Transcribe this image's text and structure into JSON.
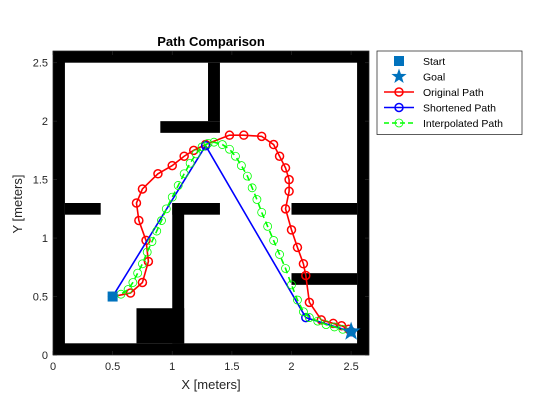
{
  "chart_data": {
    "type": "line",
    "title": "Path Comparison",
    "xlabel": "X [meters]",
    "ylabel": "Y [meters]",
    "xlim": [
      0,
      2.65
    ],
    "ylim": [
      0,
      2.6
    ],
    "xticks": [
      "0",
      "0.5",
      "1",
      "1.5",
      "2",
      "2.5"
    ],
    "xtick_values": [
      0,
      0.5,
      1,
      1.5,
      2,
      2.5
    ],
    "yticks": [
      "0",
      "0.5",
      "1",
      "1.5",
      "2",
      "2.5"
    ],
    "ytick_values": [
      0,
      0.5,
      1,
      1.5,
      2,
      2.5
    ],
    "grid": false,
    "legend_position": "outside-top-right",
    "legend": [
      {
        "label": "Start",
        "marker": "square",
        "color": "#0072BD"
      },
      {
        "label": "Goal",
        "marker": "star",
        "color": "#0072BD"
      },
      {
        "label": "Original Path",
        "marker": "circle",
        "color": "#FF0000"
      },
      {
        "label": "Shortened Path",
        "marker": "circle",
        "color": "#0000FF"
      },
      {
        "label": "Interpolated Path",
        "marker": "circle",
        "color": "#00FF00",
        "dashed": true
      }
    ],
    "map": {
      "occupied_color": "#000000",
      "free_color": "#ffffff",
      "obstacles": [
        {
          "x0": 0,
          "x1": 2.65,
          "y0": 0,
          "y1": 0.1
        },
        {
          "x0": 0,
          "x1": 2.65,
          "y0": 2.5,
          "y1": 2.6
        },
        {
          "x0": 0,
          "x1": 0.1,
          "y0": 0,
          "y1": 2.6
        },
        {
          "x0": 2.55,
          "x1": 2.65,
          "y0": 0,
          "y1": 2.6
        },
        {
          "x0": 1.3,
          "x1": 1.4,
          "y0": 2.0,
          "y1": 2.5
        },
        {
          "x0": 0.9,
          "x1": 1.4,
          "y0": 1.9,
          "y1": 2.0
        },
        {
          "x0": 0.1,
          "x1": 0.4,
          "y0": 1.2,
          "y1": 1.3
        },
        {
          "x0": 1.0,
          "x1": 1.4,
          "y0": 1.2,
          "y1": 1.3
        },
        {
          "x0": 1.0,
          "x1": 1.1,
          "y0": 0.1,
          "y1": 1.3
        },
        {
          "x0": 2.0,
          "x1": 2.55,
          "y0": 1.2,
          "y1": 1.3
        },
        {
          "x0": 2.0,
          "x1": 2.55,
          "y0": 0.6,
          "y1": 0.7
        },
        {
          "x0": 0.7,
          "x1": 1.1,
          "y0": 0.1,
          "y1": 0.4
        }
      ]
    },
    "series": [
      {
        "name": "Start",
        "type": "scatter",
        "marker": "square",
        "color": "#0072BD",
        "x": [
          0.5
        ],
        "y": [
          0.5
        ]
      },
      {
        "name": "Goal",
        "type": "scatter",
        "marker": "star",
        "color": "#0072BD",
        "x": [
          2.5
        ],
        "y": [
          0.2
        ]
      },
      {
        "name": "Original Path",
        "type": "line",
        "marker": "circle",
        "color": "#FF0000",
        "x": [
          0.5,
          0.65,
          0.75,
          0.8,
          0.78,
          0.72,
          0.7,
          0.75,
          0.88,
          1.0,
          1.1,
          1.18,
          1.28,
          1.48,
          1.6,
          1.75,
          1.85,
          1.9,
          1.95,
          1.98,
          1.98,
          1.95,
          2.0,
          2.05,
          2.1,
          2.12,
          2.15,
          2.25,
          2.35,
          2.42,
          2.48,
          2.5
        ],
        "y": [
          0.5,
          0.53,
          0.62,
          0.8,
          0.98,
          1.15,
          1.3,
          1.42,
          1.55,
          1.62,
          1.7,
          1.75,
          1.8,
          1.88,
          1.88,
          1.87,
          1.8,
          1.7,
          1.6,
          1.5,
          1.4,
          1.25,
          1.07,
          0.92,
          0.78,
          0.68,
          0.45,
          0.3,
          0.27,
          0.25,
          0.22,
          0.2
        ]
      },
      {
        "name": "Shortened Path",
        "type": "line",
        "marker": "circle",
        "color": "#0000FF",
        "x": [
          0.5,
          1.28,
          2.12,
          2.5
        ],
        "y": [
          0.5,
          1.79,
          0.32,
          0.2
        ]
      },
      {
        "name": "Interpolated Path",
        "type": "line",
        "marker": "circle",
        "dashed": true,
        "color": "#00FF00",
        "x": [
          0.5,
          0.57,
          0.63,
          0.67,
          0.71,
          0.75,
          0.79,
          0.83,
          0.87,
          0.91,
          0.95,
          1.0,
          1.05,
          1.1,
          1.15,
          1.2,
          1.25,
          1.3,
          1.35,
          1.42,
          1.48,
          1.53,
          1.58,
          1.63,
          1.67,
          1.71,
          1.75,
          1.8,
          1.85,
          1.9,
          1.95,
          2.0,
          2.05,
          2.1,
          2.15,
          2.22,
          2.29,
          2.36,
          2.43,
          2.5
        ],
        "y": [
          0.5,
          0.52,
          0.56,
          0.62,
          0.7,
          0.78,
          0.88,
          0.97,
          1.06,
          1.15,
          1.25,
          1.35,
          1.45,
          1.55,
          1.64,
          1.72,
          1.78,
          1.81,
          1.82,
          1.8,
          1.76,
          1.7,
          1.62,
          1.53,
          1.43,
          1.33,
          1.22,
          1.1,
          0.98,
          0.86,
          0.74,
          0.6,
          0.47,
          0.37,
          0.32,
          0.29,
          0.26,
          0.24,
          0.22,
          0.2
        ]
      }
    ]
  }
}
